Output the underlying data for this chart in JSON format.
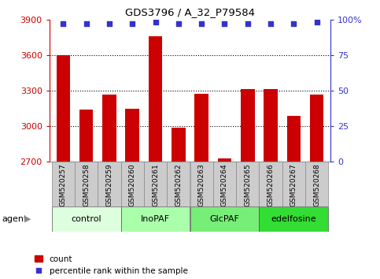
{
  "title": "GDS3796 / A_32_P79584",
  "samples": [
    "GSM520257",
    "GSM520258",
    "GSM520259",
    "GSM520260",
    "GSM520261",
    "GSM520262",
    "GSM520263",
    "GSM520264",
    "GSM520265",
    "GSM520266",
    "GSM520267",
    "GSM520268"
  ],
  "counts": [
    3600,
    3140,
    3270,
    3150,
    3760,
    2990,
    3275,
    2730,
    3315,
    3315,
    3090,
    3270
  ],
  "percentiles": [
    97,
    97,
    97,
    97,
    98,
    97,
    97,
    97,
    97,
    97,
    97,
    98
  ],
  "bar_color": "#cc0000",
  "dot_color": "#3333cc",
  "ylim_left": [
    2700,
    3900
  ],
  "ylim_right": [
    0,
    100
  ],
  "yticks_left": [
    2700,
    3000,
    3300,
    3600,
    3900
  ],
  "yticks_right": [
    0,
    25,
    50,
    75,
    100
  ],
  "ytick_labels_right": [
    "0",
    "25",
    "50",
    "75",
    "100%"
  ],
  "grid_values": [
    3000,
    3300,
    3600
  ],
  "groups": [
    {
      "label": "control",
      "start": 0,
      "end": 3,
      "color": "#ddffdd"
    },
    {
      "label": "InoPAF",
      "start": 3,
      "end": 6,
      "color": "#aaffaa"
    },
    {
      "label": "GlcPAF",
      "start": 6,
      "end": 9,
      "color": "#77ee77"
    },
    {
      "label": "edelfosine",
      "start": 9,
      "end": 12,
      "color": "#33dd33"
    }
  ],
  "agent_label": "agent",
  "legend_count_label": "count",
  "legend_pct_label": "percentile rank within the sample",
  "tick_label_color_left": "#cc0000",
  "tick_label_color_right": "#3333cc",
  "label_box_color": "#cccccc",
  "label_box_edge": "#888888"
}
